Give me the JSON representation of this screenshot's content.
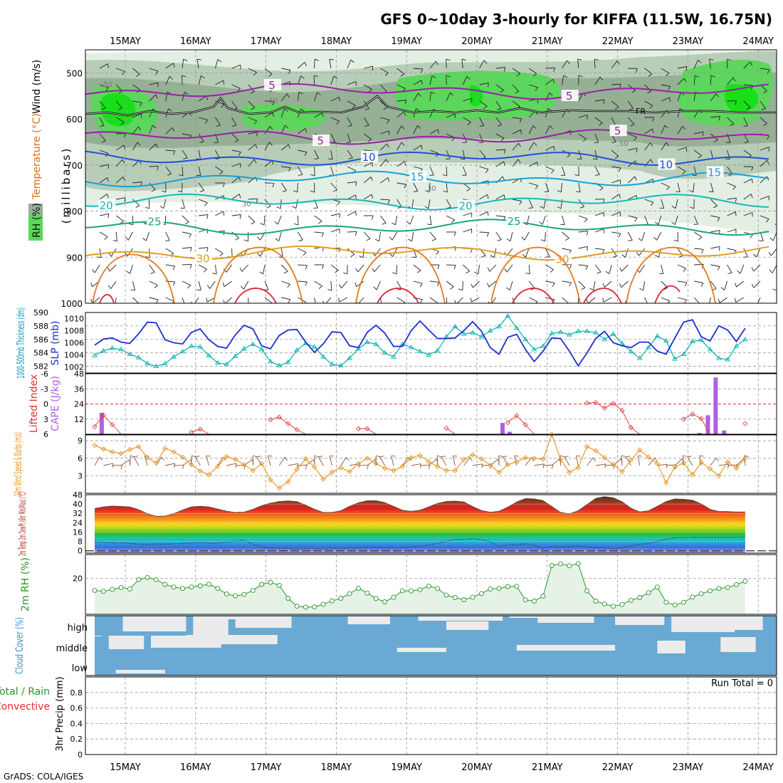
{
  "title": "GFS 0~10day 3-hourly for KIFFA (11.5W, 16.75N)",
  "credit": "GrADS: COLA/IGES",
  "dates": [
    "15MAY",
    "16MAY",
    "17MAY",
    "18MAY",
    "19MAY",
    "20MAY",
    "21MAY",
    "22MAY",
    "23MAY",
    "24MAY"
  ],
  "chart_data": [
    {
      "panel": "upper-air",
      "type": "heatmap",
      "ylabel_parts": [
        "RH (%)",
        "Temperature (°C)",
        "Wind (m/s)"
      ],
      "ylabel_unit": "(millibars)",
      "yticks": [
        "500",
        "600",
        "700",
        "800",
        "900",
        "1000"
      ],
      "ylim": [
        450,
        1000
      ],
      "freezing_label": "FR",
      "temperature_contours": [
        {
          "label": "5",
          "level_mb": 540,
          "color": "#9a1fa8"
        },
        {
          "label": "5",
          "level_mb": 640,
          "color": "#9a1fa8"
        },
        {
          "label": "10",
          "level_mb": 685,
          "color": "#2050d8"
        },
        {
          "label": "15",
          "level_mb": 730,
          "color": "#18a0d8"
        },
        {
          "label": "20",
          "level_mb": 780,
          "color": "#18b8b8"
        },
        {
          "label": "25",
          "level_mb": 835,
          "color": "#18a878"
        },
        {
          "label": "30",
          "level_mb": 890,
          "color": "#e0a020"
        }
      ],
      "rh_labels": [
        "50",
        "30",
        "50",
        "50",
        "30"
      ]
    },
    {
      "panel": "slp-thickness",
      "type": "line",
      "ylabel_left": "1000-500mb Thickness (dm)",
      "ylabel_right": "SLP (mb)",
      "yticks_left": [
        "582",
        "584",
        "586",
        "588",
        "590"
      ],
      "yticks_right": [
        "1002",
        "1004",
        "1006",
        "1008",
        "1010"
      ],
      "ylim_left": [
        581,
        590
      ],
      "ylim_right": [
        1001,
        1011
      ],
      "series": [
        {
          "name": "1000-500mb Thickness",
          "color": "#00b0b0",
          "values": [
            583.6,
            584.3,
            584.7,
            584.5,
            583.8,
            583.3,
            582.4,
            582.0,
            582.4,
            583.4,
            584.2,
            585.0,
            584.9,
            583.6,
            582.5,
            582.3,
            583.5,
            584.6,
            585.3,
            584.5,
            582.7,
            582.1,
            582.6,
            584.4,
            585.4,
            584.9,
            583.4,
            582.3,
            582.1,
            583.2,
            584.6,
            585.6,
            585.3,
            584.0,
            583.4,
            585.3,
            584.8,
            584.2,
            583.7,
            584.3,
            586.4,
            587.9,
            586.8,
            587.0,
            586.4,
            587.3,
            587.9,
            589.5,
            587.7,
            586.0,
            584.5,
            585.0,
            586.9,
            587.1,
            586.7,
            587.2,
            587.2,
            587.0,
            586.0,
            586.8,
            585.4,
            584.2,
            583.2,
            584.8,
            586.5,
            585.8,
            583.1,
            583.8,
            585.7,
            585.9,
            584.5,
            583.2,
            583.0,
            585.0,
            586.0
          ]
        },
        {
          "name": "SLP",
          "color": "#1b2fcf",
          "values": [
            1005.6,
            1006.6,
            1006.8,
            1006.1,
            1005.9,
            1007.5,
            1009.4,
            1009.3,
            1006.5,
            1006.0,
            1005.8,
            1007.7,
            1008.3,
            1006.5,
            1005.4,
            1005.1,
            1007.3,
            1008.9,
            1008.3,
            1005.5,
            1005.0,
            1007.2,
            1008.1,
            1008.2,
            1006.1,
            1004.4,
            1005.8,
            1007.8,
            1007.7,
            1005.5,
            1005.2,
            1007.7,
            1008.9,
            1007.6,
            1005.4,
            1005.4,
            1008.0,
            1009.6,
            1008.1,
            1006.7,
            1006.7,
            1006.8,
            1008.0,
            1009.5,
            1007.9,
            1005.2,
            1004.1,
            1006.9,
            1007.4,
            1004.9,
            1002.9,
            1004.6,
            1006.8,
            1006.7,
            1004.6,
            1002.2,
            1004.3,
            1006.7,
            1007.9,
            1006.0,
            1005.5,
            1005.2,
            1006.1,
            1006.1,
            1004.6,
            1004.1,
            1006.8,
            1009.4,
            1009.8,
            1007.0,
            1006.3,
            1008.8,
            1008.1,
            1006.2,
            1008.4
          ]
        }
      ]
    },
    {
      "panel": "lifted-index-cape",
      "type": "bar",
      "ylabel_left": "Lifted Index",
      "ylabel_right": "CAPE (J/kg)",
      "yticks_left": [
        "6",
        "3",
        "0",
        "-3",
        "-6"
      ],
      "yticks_right": [
        "12",
        "24",
        "36",
        "48"
      ],
      "ylim_right": [
        0,
        48
      ],
      "series": [
        {
          "name": "Lifted Index",
          "color": "#e03030",
          "values": [
            4.5,
            2.2,
            4.1,
            6.0,
            6.0,
            6.0,
            6.0,
            6.0,
            6.0,
            6.0,
            6.0,
            5.6,
            5.0,
            6.0,
            6.0,
            6.0,
            6.0,
            6.0,
            6.0,
            6.0,
            3.1,
            2.6,
            3.9,
            5.1,
            6.0,
            6.0,
            6.0,
            6.0,
            6.0,
            6.0,
            4.9,
            4.9,
            6.0,
            6.0,
            6.0,
            6.0,
            6.0,
            6.0,
            6.0,
            6.0,
            4.8,
            6.0,
            6.0,
            6.0,
            6.0,
            6.0,
            6.0,
            3.7,
            2.3,
            4.1,
            6.0,
            6.0,
            6.0,
            6.0,
            6.0,
            6.0,
            -0.2,
            -0.3,
            0.8,
            -0.1,
            1.3,
            4.7,
            6.0,
            6.0,
            6.0,
            6.0,
            6.0,
            3.0,
            2.0,
            2.9,
            6.0,
            6.0,
            6.0,
            6.0,
            3.9
          ]
        },
        {
          "name": "CAPE",
          "color": "#b060e0",
          "bars": [
            {
              "day": 0.1,
              "value": 17
            },
            {
              "day": 5.8,
              "value": 9
            },
            {
              "day": 5.9,
              "value": 2
            },
            {
              "day": 8.6,
              "value": 1
            },
            {
              "day": 8.72,
              "value": 15
            },
            {
              "day": 8.83,
              "value": 45
            },
            {
              "day": 8.95,
              "value": 3
            }
          ]
        }
      ]
    },
    {
      "panel": "wind10m",
      "type": "line",
      "ylabel": "10m Wind Speed & Barbs (m/s)",
      "yticks": [
        "3",
        "6",
        "9"
      ],
      "ylim": [
        0,
        10
      ],
      "series": [
        {
          "name": "10m Wind Speed",
          "color": "#e8901c",
          "values": [
            8.2,
            7.6,
            7.1,
            6.8,
            7.5,
            8.0,
            6.1,
            5.2,
            7.7,
            7.1,
            6.2,
            4.9,
            3.8,
            3.2,
            4.6,
            6.3,
            5.8,
            4.9,
            3.9,
            5.1,
            2.3,
            0.9,
            2.0,
            4.1,
            5.9,
            4.5,
            2.4,
            3.6,
            4.4,
            3.7,
            5.1,
            6.0,
            5.1,
            4.3,
            3.9,
            4.6,
            6.1,
            6.5,
            5.4,
            4.6,
            3.9,
            3.9,
            5.8,
            6.6,
            5.9,
            4.8,
            3.6,
            4.9,
            5.4,
            6.1,
            6.0,
            5.8,
            10.1,
            5.8,
            3.6,
            4.4,
            8.0,
            7.3,
            6.1,
            4.9,
            3.7,
            5.7,
            7.4,
            6.2,
            5.1,
            1.8,
            4.5,
            5.2,
            3.2,
            5.3,
            4.2,
            3.0,
            5.4,
            4.3,
            6.0
          ]
        }
      ]
    },
    {
      "panel": "temperature2m",
      "type": "area",
      "ylabel": "2m Temp 2m DewPt (6hr Min/Max) (°C)",
      "yticks": [
        "0",
        "8",
        "16",
        "24",
        "32",
        "40",
        "48"
      ],
      "ylim": [
        -2,
        48
      ],
      "series": [
        {
          "name": "2m Temp",
          "values": [
            36.2,
            37.5,
            38.3,
            38.0,
            37.6,
            35.2,
            31.7,
            29.5,
            29.7,
            31.8,
            34.9,
            37.5,
            38.2,
            37.5,
            35.7,
            33.9,
            32.8,
            33.1,
            35.5,
            38.6,
            40.8,
            42.2,
            42.7,
            42.1,
            39.1,
            35.5,
            32.8,
            32.8,
            34.3,
            38.1,
            41.1,
            42.9,
            42.9,
            41.3,
            38.0,
            34.7,
            33.8,
            34.7,
            37.6,
            40.6,
            42.2,
            42.6,
            41.8,
            37.9,
            34.5,
            33.0,
            33.9,
            37.3,
            41.8,
            44.7,
            44.4,
            43.0,
            37.9,
            32.9,
            31.6,
            34.3,
            39.6,
            44.9,
            46.4,
            45.4,
            42.0,
            36.5,
            33.3,
            34.3,
            38.1,
            42.2,
            44.4,
            44.1,
            43.3,
            40.2,
            35.5,
            33.7,
            33.6,
            33.2,
            33.3
          ]
        },
        {
          "name": "2m DewPt",
          "values": [
            7.8,
            7.4,
            6.7,
            6.8,
            6.4,
            5.6,
            5.4,
            5.7,
            5.6,
            5.9,
            6.1,
            6.6,
            7.1,
            6.5,
            6.5,
            7.3,
            8.3,
            8.8,
            5.7,
            3.2,
            2.2,
            2.1,
            2.1,
            1.6,
            2.1,
            1.9,
            1.6,
            2.2,
            1.9,
            2.3,
            2.1,
            3.1,
            2.8,
            2.4,
            2.6,
            2.7,
            3.1,
            4.1,
            4.7,
            6.4,
            8.1,
            9.7,
            9.7,
            10.4,
            9.5,
            7.6,
            3.8,
            5.2,
            5.1,
            5.9,
            4.8,
            2.0,
            3.8,
            3.2,
            3.6,
            4.1,
            3.2,
            2.5,
            2.4,
            1.8,
            2.3,
            4.3,
            5.6,
            6.1,
            8.0,
            9.8,
            11.1,
            11.1,
            11.6,
            11.3,
            11.4,
            11.5,
            11.6,
            11.5,
            11.6
          ]
        }
      ]
    },
    {
      "panel": "rh2m",
      "type": "area",
      "ylabel": "2m RH (%)",
      "yticks": [
        "20"
      ],
      "ylim": [
        5,
        30
      ],
      "series": [
        {
          "name": "2m RH",
          "color": "#2a962a",
          "values": [
            15.0,
            14.6,
            15.4,
            16.2,
            15.6,
            19.5,
            20.4,
            19.5,
            17.5,
            16.4,
            15.8,
            16.4,
            16.9,
            17.6,
            15.8,
            13.5,
            12.7,
            13.3,
            15.0,
            17.5,
            18.4,
            17.1,
            11.7,
            8.4,
            8.0,
            8.1,
            9.2,
            10.6,
            11.7,
            13.6,
            15.9,
            13.9,
            11.6,
            10.2,
            12.1,
            14.8,
            14.8,
            15.3,
            16.8,
            15.8,
            13.0,
            12.0,
            11.1,
            12.1,
            13.7,
            15.6,
            15.8,
            16.6,
            16.7,
            11.0,
            10.5,
            12.6,
            25.4,
            26.1,
            25.3,
            26.2,
            14.8,
            10.5,
            9.3,
            8.4,
            9.1,
            10.9,
            12.0,
            14.0,
            16.4,
            10.0,
            8.9,
            10.0,
            12.2,
            13.6,
            14.8,
            15.8,
            16.2,
            17.4,
            18.8
          ]
        }
      ]
    },
    {
      "panel": "cloud-cover",
      "type": "heatmap",
      "ylabel": "Cloud Cover (%)",
      "levels": [
        "high",
        "middle",
        "low"
      ]
    },
    {
      "panel": "precip",
      "type": "bar",
      "ylabel_left": "Total / Rain",
      "ylabel_left2": "Convective",
      "ylabel": "3hr Precip (mm)",
      "yticks": [
        "0",
        "0.2",
        "0.4",
        "0.6",
        "0.8"
      ],
      "ylim": [
        0,
        1
      ],
      "run_total": "Run Total = 0",
      "values": []
    }
  ]
}
